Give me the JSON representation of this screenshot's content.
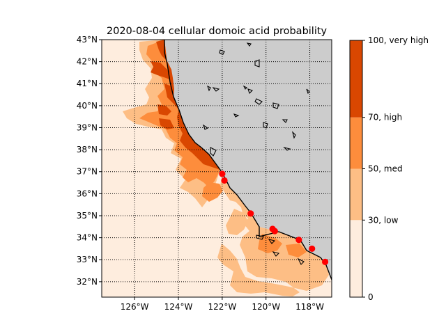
{
  "chart_data": {
    "type": "heatmap",
    "title": "2020-08-04 cellular domoic acid probability",
    "xlabel": "",
    "ylabel": "",
    "xlim": [
      -127.5,
      -117
    ],
    "ylim": [
      31.3,
      43
    ],
    "x_ticks": [
      {
        "value": -126,
        "label": "126$^\\circ$W"
      },
      {
        "value": -124,
        "label": "124$^\\circ$W"
      },
      {
        "value": -122,
        "label": "122$^\\circ$W"
      },
      {
        "value": -120,
        "label": "120$^\\circ$W"
      },
      {
        "value": -118,
        "label": "118$^\\circ$W"
      }
    ],
    "x_tick_display": [
      "126°W",
      "124°W",
      "122°W",
      "120°W",
      "118°W"
    ],
    "y_ticks": [
      {
        "value": 32,
        "label": "32°N"
      },
      {
        "value": 33,
        "label": "33°N"
      },
      {
        "value": 34,
        "label": "34°N"
      },
      {
        "value": 35,
        "label": "35°N"
      },
      {
        "value": 36,
        "label": "36°N"
      },
      {
        "value": 37,
        "label": "37°N"
      },
      {
        "value": 38,
        "label": "38°N"
      },
      {
        "value": 39,
        "label": "39°N"
      },
      {
        "value": 40,
        "label": "40°N"
      },
      {
        "value": 41,
        "label": "41°N"
      },
      {
        "value": 42,
        "label": "42°N"
      },
      {
        "value": 43,
        "label": "43°N"
      }
    ],
    "grid": true,
    "colorbar": {
      "levels": [
        0,
        30,
        50,
        70,
        100
      ],
      "labels": [
        "0",
        "30, low",
        "50, med",
        "70, high",
        "100, very high"
      ],
      "colors": [
        "#feedde",
        "#fdbe85",
        "#fd8d3c",
        "#d94701"
      ]
    },
    "land_color": "#cccccc",
    "ocean_base_color": "#feedde",
    "observations": {
      "color": "#ff0000",
      "points": [
        {
          "lon": -122.0,
          "lat": 36.9
        },
        {
          "lon": -121.9,
          "lat": 36.6
        },
        {
          "lon": -120.7,
          "lat": 35.1
        },
        {
          "lon": -119.7,
          "lat": 34.4
        },
        {
          "lon": -119.6,
          "lat": 34.3
        },
        {
          "lon": -118.5,
          "lat": 33.9
        },
        {
          "lon": -117.9,
          "lat": 33.5
        },
        {
          "lon": -117.3,
          "lat": 32.9
        }
      ]
    }
  }
}
